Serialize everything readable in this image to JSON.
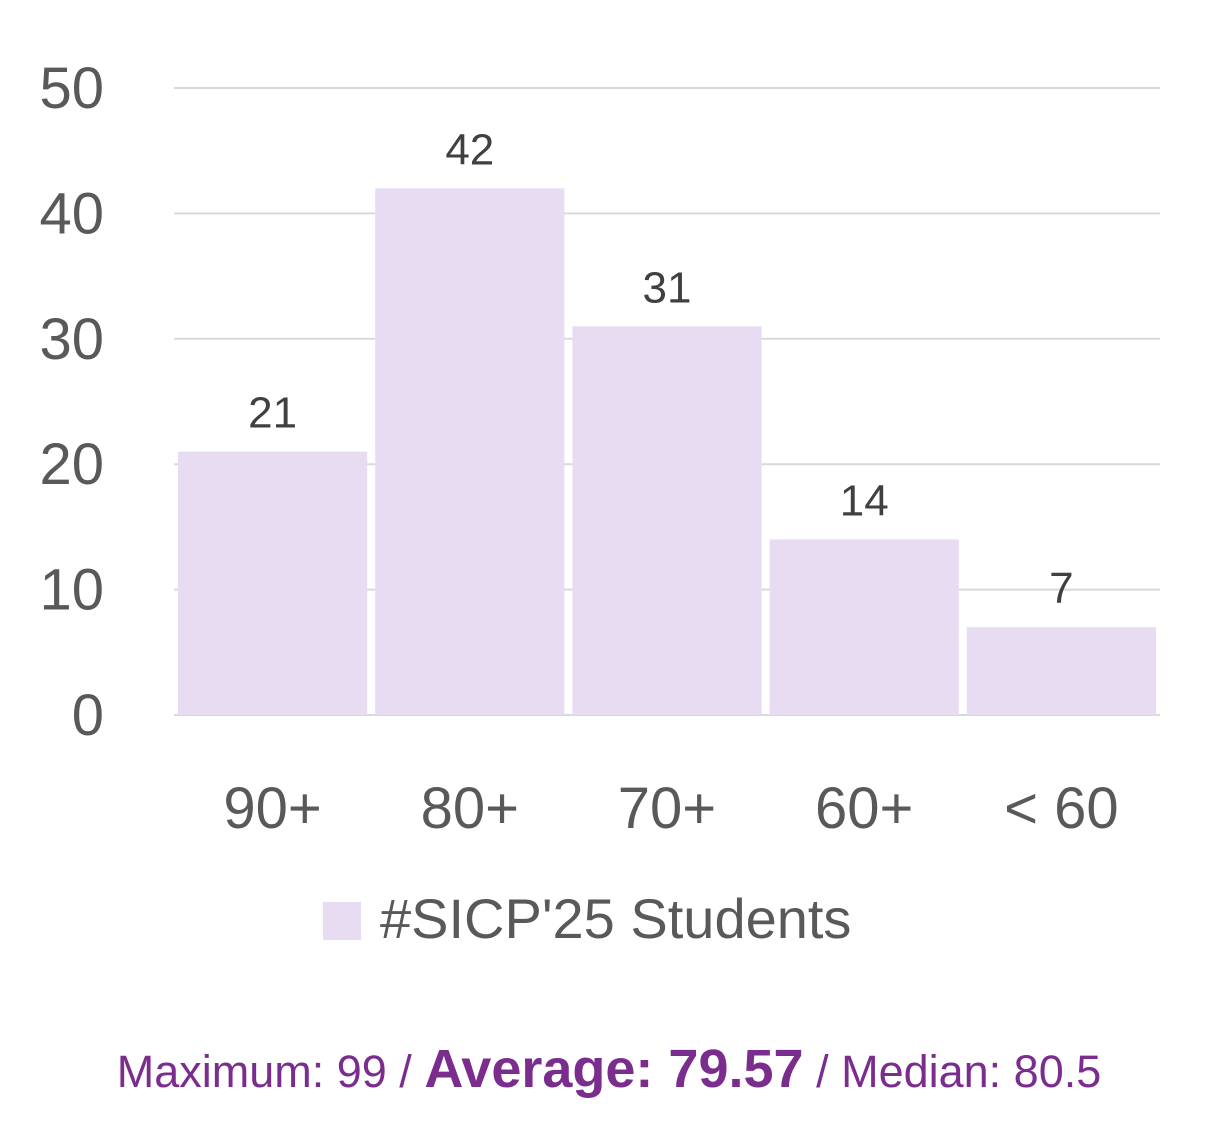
{
  "chart_data": {
    "type": "bar",
    "categories": [
      "90+",
      "80+",
      "70+",
      "60+",
      "< 60"
    ],
    "series": [
      {
        "name": "#SICP'25 Students",
        "values": [
          21,
          42,
          31,
          14,
          7
        ]
      }
    ],
    "data_labels": [
      "21",
      "42",
      "31",
      "14",
      "7"
    ],
    "y_ticks": [
      "0",
      "10",
      "20",
      "30",
      "40",
      "50"
    ],
    "ylim": [
      0,
      50
    ],
    "grid": true,
    "legend_position": "bottom",
    "colors": {
      "bar": "#e8dcf2",
      "grid": "#d9d9d9",
      "tick_text": "#595959",
      "data_label_text": "#404040",
      "stats_text": "#7b2d8e"
    }
  },
  "stats": {
    "maximum": "Maximum: 99",
    "sep1": " / ",
    "average": "Average: 79.57",
    "sep2": " / ",
    "median": "Median: 80.5"
  }
}
